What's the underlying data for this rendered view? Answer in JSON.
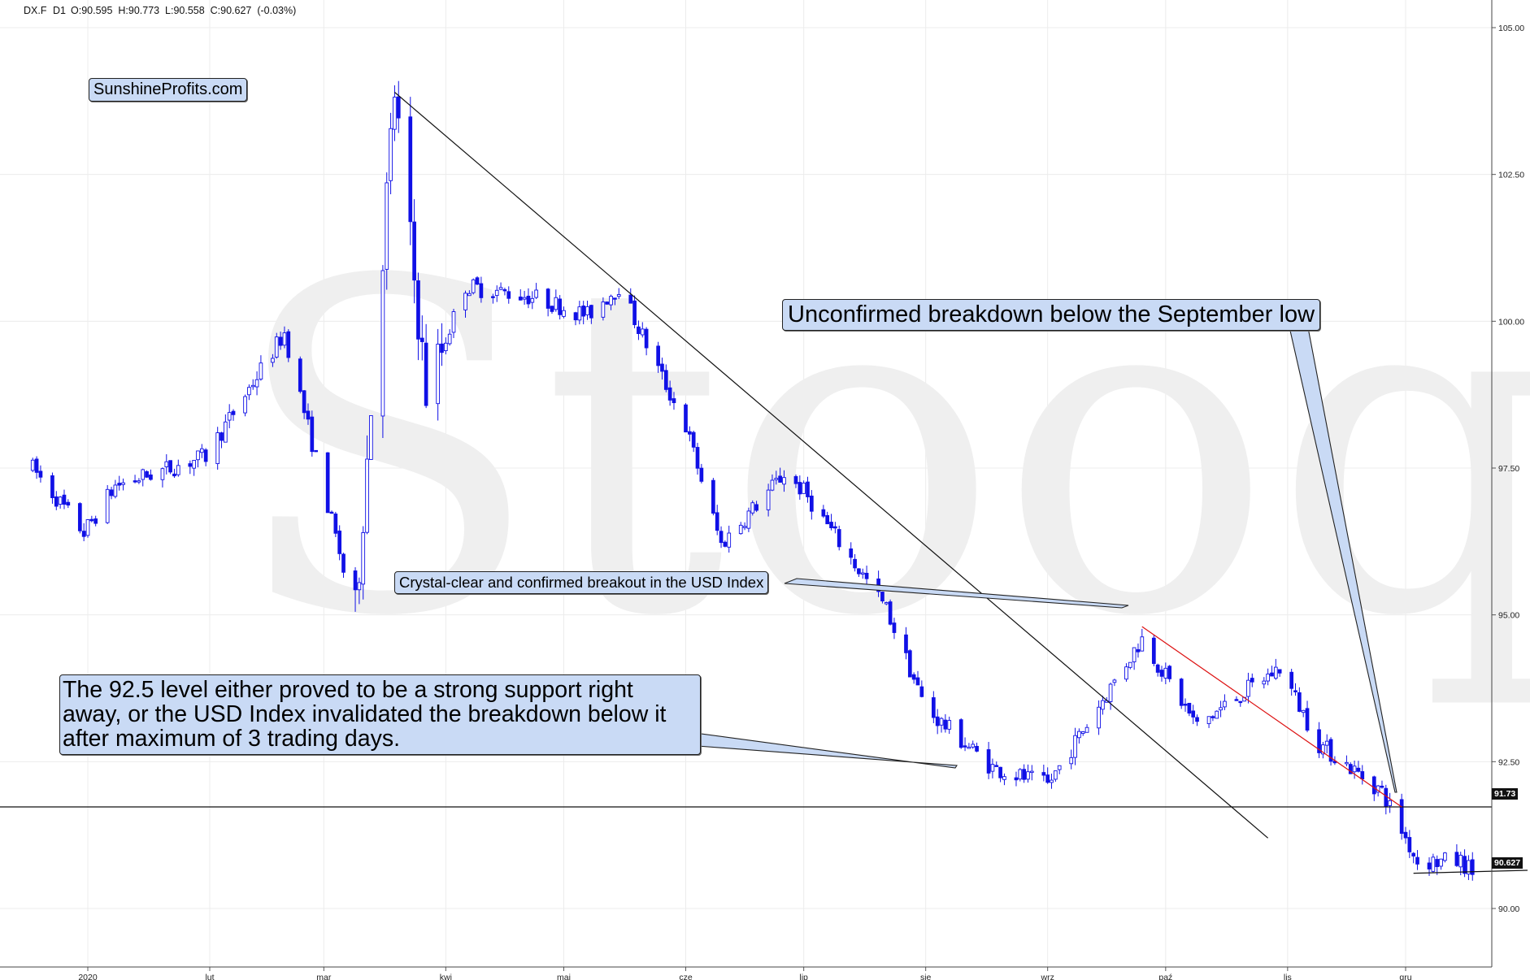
{
  "header": {
    "ticker": "DX.F",
    "interval": "D1",
    "ohlc_text": "O:90.595  H:90.773  L:90.558  C:90.627  (-0.03%)"
  },
  "watermark": "Stooq",
  "annotations": {
    "sunshine": "SunshineProfits.com",
    "breakout": "Crystal-clear and confirmed breakout in the USD Index",
    "unconfirmed": "Unconfirmed breakdown below the September low",
    "support": "The 92.5 level either proved to be a strong support right away, or the USD Index invalidated the breakdown below it after maximum of 3 trading days."
  },
  "price_tags": {
    "support_level": "91.73",
    "last_close": "90.627"
  },
  "colors": {
    "candle": "#1010e6",
    "channel_line": "#dd1111",
    "trendline": "#111111",
    "grid": "#ececec"
  },
  "chart_data": {
    "type": "candlestick",
    "title": "",
    "xlabel": "",
    "ylabel": "",
    "x_ticks": [
      "2020",
      "lut",
      "mar",
      "kwi",
      "maj",
      "cze",
      "lip",
      "sie",
      "wrz",
      "paź",
      "lis",
      "gru"
    ],
    "y_ticks": [
      "105.00",
      "102.50",
      "100.00",
      "97.50",
      "95.00",
      "92.50",
      "90.00"
    ],
    "ylim": [
      88.8,
      105.3
    ],
    "grid": true,
    "horizontal_level": 91.73,
    "last_close": 90.627,
    "anchors": [
      [
        "2019-12-18",
        97.5
      ],
      [
        "2019-12-31",
        96.4
      ],
      [
        "2020-01-08",
        97.2
      ],
      [
        "2020-01-31",
        97.7
      ],
      [
        "2020-02-20",
        99.8
      ],
      [
        "2020-03-09",
        95.0
      ],
      [
        "2020-03-19",
        103.9
      ],
      [
        "2020-03-27",
        98.8
      ],
      [
        "2020-04-06",
        100.6
      ],
      [
        "2020-04-24",
        100.4
      ],
      [
        "2020-05-07",
        100.1
      ],
      [
        "2020-05-15",
        100.6
      ],
      [
        "2020-06-01",
        98.2
      ],
      [
        "2020-06-10",
        96.2
      ],
      [
        "2020-06-26",
        97.4
      ],
      [
        "2020-07-01",
        97.1
      ],
      [
        "2020-07-22",
        95.1
      ],
      [
        "2020-08-01",
        93.4
      ],
      [
        "2020-08-18",
        92.4
      ],
      [
        "2020-09-01",
        92.1
      ],
      [
        "2020-09-25",
        94.6
      ],
      [
        "2020-10-09",
        93.1
      ],
      [
        "2020-10-19",
        93.6
      ],
      [
        "2020-10-30",
        94.1
      ],
      [
        "2020-11-09",
        92.8
      ],
      [
        "2020-11-25",
        92.0
      ],
      [
        "2020-12-04",
        90.8
      ],
      [
        "2020-12-15",
        90.8
      ],
      [
        "2020-12-18",
        90.63
      ]
    ],
    "trendlines": [
      {
        "name": "",
        "color": "#111111",
        "from": [
          "2020-03-19",
          103.9
        ],
        "to": [
          "2020-10-27",
          91.2
        ]
      },
      {
        "name": "",
        "color": "#dd1111",
        "from": [
          "2020-09-25",
          94.8
        ],
        "to": [
          "2020-11-30",
          91.73
        ]
      },
      {
        "name": "",
        "color": "#111111",
        "from": [
          "2020-12-03",
          90.6
        ],
        "to": [
          "2021-01-01",
          90.65
        ]
      }
    ]
  }
}
